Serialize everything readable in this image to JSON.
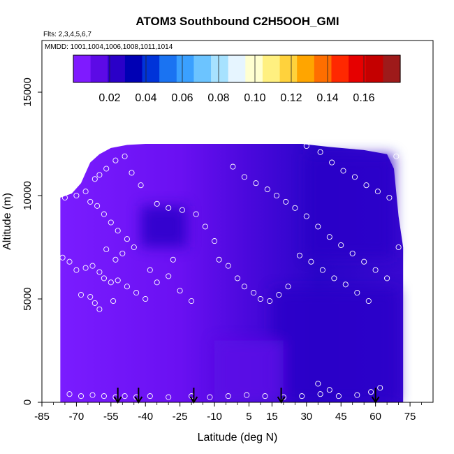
{
  "chart_data": {
    "type": "heatmap",
    "title": "ATOM3 Southbound C2H5OOH_GMI",
    "flights_note": "Flts: 2,3,4,5,6,7",
    "dates_note": "MMDD: 1001,1004,1006,1008,1011,1014",
    "xlabel": "Latitude (deg N)",
    "ylabel": "Altitude (m)",
    "xlim": [
      -85,
      85
    ],
    "ylim": [
      0,
      17500
    ],
    "x_ticks": [
      -85,
      -70,
      -55,
      -40,
      -25,
      -10,
      5,
      15,
      30,
      45,
      60,
      75
    ],
    "x_tick_labels": [
      "-85",
      "-70",
      "-55",
      "-40",
      "-25",
      "-10",
      "5",
      "15",
      "30",
      "45",
      "60",
      "75"
    ],
    "y_ticks": [
      0,
      5000,
      10000,
      15000
    ],
    "y_tick_labels": [
      "0",
      "5000",
      "10000",
      "15000"
    ],
    "colorbar": {
      "min": 0.0,
      "max": 0.18,
      "tick_values": [
        0.02,
        0.04,
        0.06,
        0.08,
        0.1,
        0.12,
        0.14,
        0.16
      ],
      "tick_labels": [
        "0.02",
        "0.04",
        "0.06",
        "0.08",
        "0.10",
        "0.12",
        "0.14",
        "0.16"
      ],
      "colors": [
        "#7f1aff",
        "#5c0ae6",
        "#2a00c8",
        "#0000b4",
        "#0033d9",
        "#1a73f2",
        "#3aa0ff",
        "#6cc4ff",
        "#a7e2ff",
        "#e6f5ff",
        "#ffffd0",
        "#fff080",
        "#ffd23c",
        "#ffa500",
        "#ff6e00",
        "#ff2800",
        "#e60000",
        "#c40000",
        "#9e1a1a"
      ]
    },
    "field": {
      "description": "C2H5OOH mixing ratio; values mostly 0.0-0.03",
      "lat_range": [
        -77,
        72
      ],
      "alt_max_by_lat": [
        [
          -77,
          9900
        ],
        [
          -72,
          10100
        ],
        [
          -68,
          10600
        ],
        [
          -64,
          11600
        ],
        [
          -60,
          12000
        ],
        [
          -55,
          12300
        ],
        [
          -48,
          12450
        ],
        [
          -40,
          12500
        ],
        [
          -20,
          12500
        ],
        [
          0,
          12500
        ],
        [
          20,
          12500
        ],
        [
          28,
          12500
        ],
        [
          40,
          12350
        ],
        [
          55,
          12200
        ],
        [
          65,
          12000
        ],
        [
          68,
          11300
        ],
        [
          70,
          9000
        ],
        [
          72,
          7500
        ]
      ],
      "high_value_regions": [
        {
          "lat_min": -42,
          "lat_max": -22,
          "alt_min": 7500,
          "alt_max": 9500,
          "value": 0.025
        },
        {
          "lat_min": 30,
          "lat_max": 68,
          "alt_min": 7000,
          "alt_max": 12000,
          "value": 0.024
        },
        {
          "lat_min": 15,
          "lat_max": 70,
          "alt_min": 0,
          "alt_max": 5500,
          "value": 0.022
        },
        {
          "lat_min": -10,
          "lat_max": 20,
          "alt_min": 0,
          "alt_max": 3000,
          "value": 0.015
        }
      ]
    },
    "sample_points": [
      [
        -76,
        7000
      ],
      [
        -73,
        6800
      ],
      [
        -70,
        6400
      ],
      [
        -66,
        6500
      ],
      [
        -63,
        6600
      ],
      [
        -60,
        6300
      ],
      [
        -58,
        6000
      ],
      [
        -55,
        5800
      ],
      [
        -52,
        5900
      ],
      [
        -48,
        5600
      ],
      [
        -44,
        5300
      ],
      [
        -40,
        5000
      ],
      [
        -68,
        5200
      ],
      [
        -64,
        5100
      ],
      [
        -60,
        4500
      ],
      [
        -62,
        4800
      ],
      [
        -54,
        4900
      ],
      [
        -75,
        9900
      ],
      [
        -70,
        10000
      ],
      [
        -66,
        10200
      ],
      [
        -64,
        9700
      ],
      [
        -61,
        9500
      ],
      [
        -58,
        9100
      ],
      [
        -55,
        8700
      ],
      [
        -52,
        8300
      ],
      [
        -48,
        7900
      ],
      [
        -45,
        7500
      ],
      [
        -50,
        7200
      ],
      [
        -53,
        6900
      ],
      [
        -57,
        7400
      ],
      [
        -60,
        11000
      ],
      [
        -57,
        11300
      ],
      [
        -53,
        11700
      ],
      [
        -49,
        11900
      ],
      [
        -46,
        11100
      ],
      [
        -42,
        10500
      ],
      [
        -67,
        11400
      ],
      [
        -62,
        10800
      ],
      [
        -35,
        9600
      ],
      [
        -30,
        9400
      ],
      [
        -24,
        9300
      ],
      [
        -18,
        9100
      ],
      [
        -14,
        8500
      ],
      [
        -10,
        7800
      ],
      [
        -8,
        6900
      ],
      [
        -4,
        6600
      ],
      [
        0,
        6000
      ],
      [
        3,
        5600
      ],
      [
        7,
        5300
      ],
      [
        10,
        5000
      ],
      [
        14,
        4900
      ],
      [
        18,
        5200
      ],
      [
        22,
        5600
      ],
      [
        -28,
        6900
      ],
      [
        -25,
        5400
      ],
      [
        -20,
        4900
      ],
      [
        -35,
        5800
      ],
      [
        -38,
        6400
      ],
      [
        -30,
        6100
      ],
      [
        -2,
        11400
      ],
      [
        3,
        10900
      ],
      [
        8,
        10600
      ],
      [
        13,
        10300
      ],
      [
        17,
        10000
      ],
      [
        21,
        9700
      ],
      [
        25,
        9400
      ],
      [
        30,
        9000
      ],
      [
        35,
        8500
      ],
      [
        40,
        8000
      ],
      [
        45,
        7600
      ],
      [
        50,
        7200
      ],
      [
        55,
        6800
      ],
      [
        60,
        6400
      ],
      [
        65,
        6000
      ],
      [
        70,
        7500
      ],
      [
        27,
        7100
      ],
      [
        32,
        6800
      ],
      [
        37,
        6400
      ],
      [
        42,
        6000
      ],
      [
        47,
        5700
      ],
      [
        52,
        5300
      ],
      [
        57,
        4900
      ],
      [
        30,
        12400
      ],
      [
        36,
        12100
      ],
      [
        41,
        11600
      ],
      [
        46,
        11200
      ],
      [
        51,
        10900
      ],
      [
        56,
        10500
      ],
      [
        61,
        10200
      ],
      [
        66,
        9900
      ],
      [
        69,
        11900
      ],
      [
        -73,
        400
      ],
      [
        -68,
        300
      ],
      [
        -63,
        350
      ],
      [
        -58,
        300
      ],
      [
        -53,
        250
      ],
      [
        -49,
        300
      ],
      [
        -44,
        250
      ],
      [
        -38,
        300
      ],
      [
        -30,
        250
      ],
      [
        -20,
        300
      ],
      [
        -12,
        250
      ],
      [
        -4,
        300
      ],
      [
        4,
        350
      ],
      [
        12,
        300
      ],
      [
        20,
        250
      ],
      [
        28,
        300
      ],
      [
        36,
        400
      ],
      [
        44,
        300
      ],
      [
        52,
        350
      ],
      [
        58,
        500
      ],
      [
        62,
        700
      ],
      [
        35,
        900
      ],
      [
        40,
        600
      ]
    ],
    "arrow_latitudes": [
      -52,
      -43,
      -19,
      19,
      60
    ]
  }
}
